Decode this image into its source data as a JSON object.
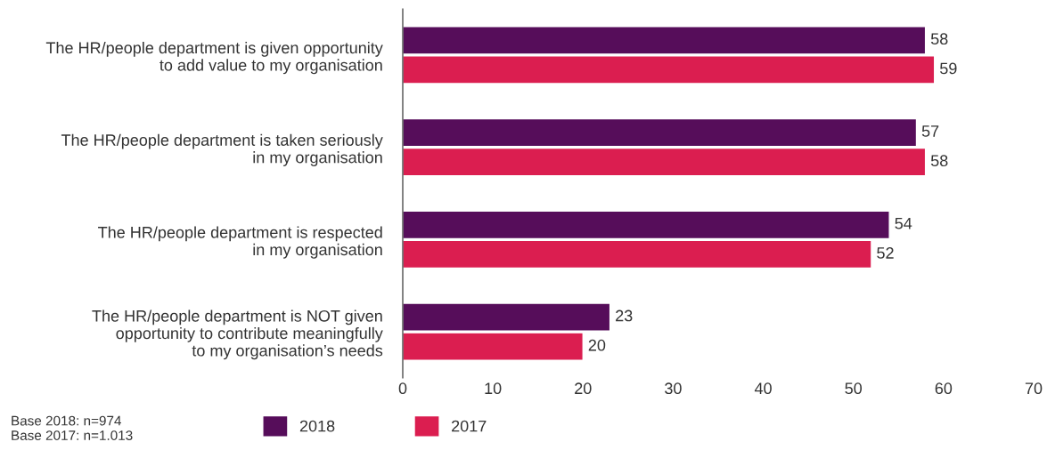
{
  "chart_data": {
    "type": "bar",
    "orientation": "horizontal",
    "categories": [
      "The HR/people department is given opportunity\nto add value to my organisation",
      "The HR/people department is taken seriously\nin my organisation",
      "The HR/people department is respected\nin my organisation",
      "The HR/people department is NOT given\nopportunity to contribute meaningfully\nto my organisation’s needs"
    ],
    "series": [
      {
        "name": "2018",
        "color": "#560d5a",
        "values": [
          58,
          57,
          54,
          23
        ]
      },
      {
        "name": "2017",
        "color": "#db1e50",
        "values": [
          59,
          58,
          52,
          20
        ]
      }
    ],
    "xlim": [
      0,
      70
    ],
    "xticks": [
      0,
      10,
      20,
      30,
      40,
      50,
      60,
      70
    ],
    "data_labels": true,
    "grid": false,
    "legend": "bottom",
    "annotations": [
      "Base 2018: n=974\nBase 2017: n=1.013"
    ]
  }
}
